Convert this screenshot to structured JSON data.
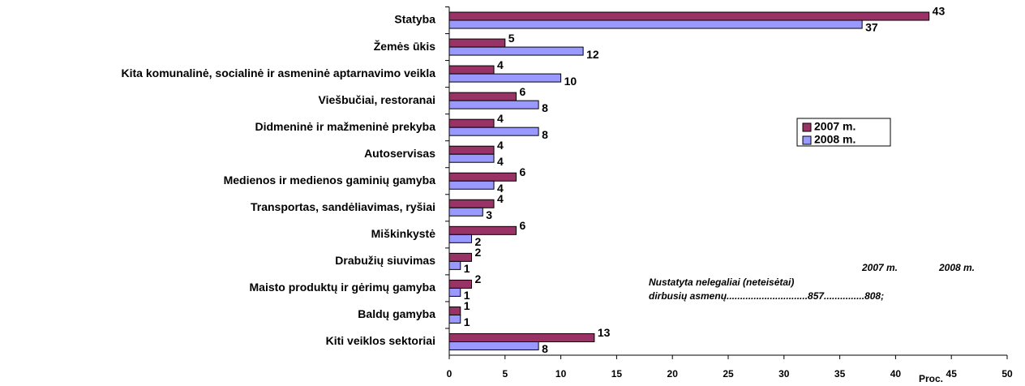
{
  "chart_data": {
    "type": "bar",
    "orientation": "horizontal",
    "categories": [
      "Statyba",
      "Žemės ūkis",
      "Kita komunalinė, socialinė ir asmeninė aptarnavimo veikla",
      "Viešbučiai, restoranai",
      "Didmeninė ir mažmeninė prekyba",
      "Autoservisas",
      "Medienos ir medienos gaminių gamyba",
      "Transportas, sandėliavimas, ryšiai",
      "Miškinkystė",
      "Drabužių siuvimas",
      "Maisto produktų ir gėrimų gamyba",
      "Baldų gamyba",
      "Kiti veiklos sektoriai"
    ],
    "series": [
      {
        "name": "2007 m.",
        "color": "#993366",
        "values": [
          43,
          5,
          4,
          6,
          4,
          4,
          6,
          4,
          6,
          2,
          2,
          1,
          13
        ]
      },
      {
        "name": "2008 m.",
        "color": "#9999ff",
        "values": [
          37,
          12,
          10,
          8,
          8,
          4,
          4,
          3,
          2,
          1,
          1,
          1,
          8
        ]
      }
    ],
    "xlim": [
      0,
      50
    ],
    "xticks": [
      0,
      5,
      10,
      15,
      20,
      25,
      30,
      35,
      40,
      45,
      50
    ],
    "xlabel": "Proc.",
    "legend": "right",
    "grid": false,
    "annotations": [
      "2007 m.",
      "2008 m.",
      "Nustatyta nelegaliai (neteisėtai)",
      "dirbusių asmenų..............................857...............808;"
    ]
  }
}
